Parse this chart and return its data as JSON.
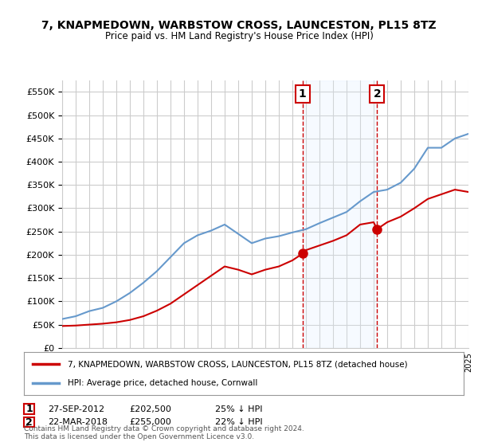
{
  "title": "7, KNAPMEDOWN, WARBSTOW CROSS, LAUNCESTON, PL15 8TZ",
  "subtitle": "Price paid vs. HM Land Registry's House Price Index (HPI)",
  "legend_line1": "7, KNAPMEDOWN, WARBSTOW CROSS, LAUNCESTON, PL15 8TZ (detached house)",
  "legend_line2": "HPI: Average price, detached house, Cornwall",
  "footer": "Contains HM Land Registry data © Crown copyright and database right 2024.\nThis data is licensed under the Open Government Licence v3.0.",
  "transaction1_label": "1",
  "transaction1_date": "27-SEP-2012",
  "transaction1_price": "£202,500",
  "transaction1_hpi": "25% ↓ HPI",
  "transaction2_label": "2",
  "transaction2_date": "22-MAR-2018",
  "transaction2_price": "£255,000",
  "transaction2_hpi": "22% ↓ HPI",
  "hpi_color": "#6699cc",
  "price_color": "#cc0000",
  "marker_color": "#cc0000",
  "highlight_color": "#ddeeff",
  "vline_color": "#cc0000",
  "grid_color": "#cccccc",
  "background_color": "#ffffff",
  "ylim": [
    0,
    575000
  ],
  "yticks": [
    0,
    50000,
    100000,
    150000,
    200000,
    250000,
    300000,
    350000,
    400000,
    450000,
    500000,
    550000
  ],
  "year_start": 1995,
  "year_end": 2025,
  "transaction1_year": 2012.75,
  "transaction2_year": 2018.25,
  "hpi_years": [
    1995,
    1996,
    1997,
    1998,
    1999,
    2000,
    2001,
    2002,
    2003,
    2004,
    2005,
    2006,
    2007,
    2008,
    2009,
    2010,
    2011,
    2012,
    2013,
    2014,
    2015,
    2016,
    2017,
    2018,
    2019,
    2020,
    2021,
    2022,
    2023,
    2024,
    2025
  ],
  "hpi_values": [
    62000,
    68000,
    79000,
    86000,
    100000,
    118000,
    140000,
    165000,
    195000,
    225000,
    242000,
    252000,
    265000,
    245000,
    225000,
    235000,
    240000,
    248000,
    255000,
    268000,
    280000,
    292000,
    315000,
    335000,
    340000,
    355000,
    385000,
    430000,
    430000,
    450000,
    460000
  ],
  "price_years": [
    1995,
    1996,
    1997,
    1998,
    1999,
    2000,
    2001,
    2002,
    2003,
    2004,
    2005,
    2006,
    2007,
    2008,
    2009,
    2010,
    2011,
    2012,
    2012.75,
    2013,
    2014,
    2015,
    2016,
    2017,
    2018,
    2018.25,
    2019,
    2020,
    2021,
    2022,
    2023,
    2024,
    2025
  ],
  "price_values": [
    47000,
    48000,
    50000,
    52000,
    55000,
    60000,
    68000,
    80000,
    95000,
    115000,
    135000,
    155000,
    175000,
    168000,
    158000,
    168000,
    175000,
    188000,
    202500,
    210000,
    220000,
    230000,
    242000,
    265000,
    270000,
    255000,
    270000,
    282000,
    300000,
    320000,
    330000,
    340000,
    335000
  ]
}
